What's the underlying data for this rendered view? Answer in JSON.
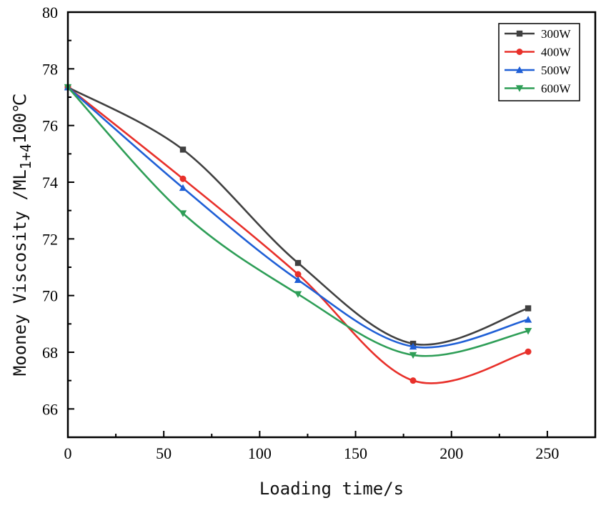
{
  "chart_data": {
    "type": "line",
    "title": "",
    "xlabel": "Loading time/s",
    "ylabel": {
      "main": "Mooney Viscosity /ML",
      "subscript": "1+4",
      "suffix": "100℃"
    },
    "xlim": [
      0,
      275
    ],
    "ylim": [
      65,
      80
    ],
    "x_ticks": [
      0,
      50,
      100,
      150,
      200,
      250
    ],
    "x_tick_labels": [
      "0",
      "50",
      "100",
      "150",
      "200",
      "250"
    ],
    "y_ticks": [
      66,
      68,
      70,
      72,
      74,
      76,
      78,
      80
    ],
    "y_tick_labels": [
      "66",
      "68",
      "70",
      "72",
      "74",
      "76",
      "78",
      "80"
    ],
    "x_minor_ticks": [
      25,
      75,
      125,
      175,
      225
    ],
    "y_minor_ticks": [
      67,
      69,
      71,
      73,
      75,
      77,
      79
    ],
    "legend_position": "top-right",
    "grid": false,
    "x": [
      0,
      60,
      120,
      180,
      240
    ],
    "series": [
      {
        "name": "300W",
        "marker": "square",
        "color": "#404040",
        "values": [
          77.35,
          75.15,
          71.15,
          68.3,
          69.55
        ]
      },
      {
        "name": "400W",
        "marker": "circle",
        "color": "#e8302a",
        "values": [
          77.35,
          74.12,
          70.75,
          67.0,
          68.02
        ]
      },
      {
        "name": "500W",
        "marker": "triangle-up",
        "color": "#1f5fd6",
        "values": [
          77.35,
          73.8,
          70.55,
          68.2,
          69.15
        ]
      },
      {
        "name": "600W",
        "marker": "triangle-down",
        "color": "#2e9e57",
        "values": [
          77.35,
          72.9,
          70.05,
          67.9,
          68.75
        ]
      }
    ]
  }
}
